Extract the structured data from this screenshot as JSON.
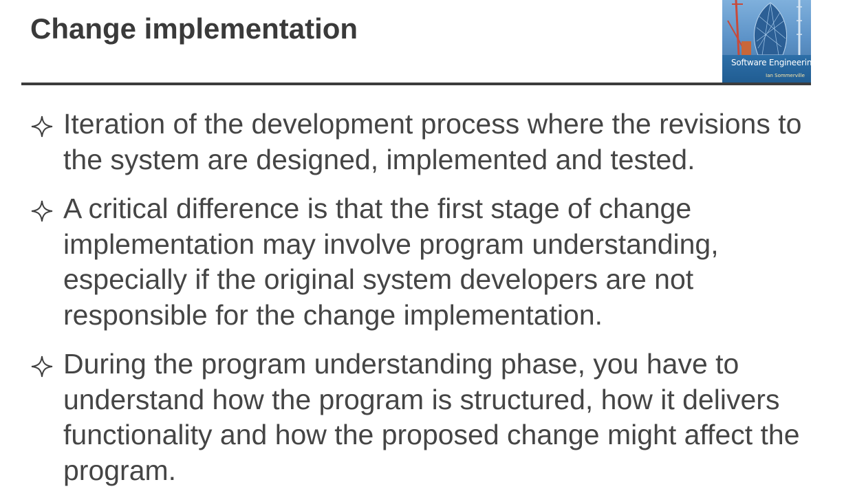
{
  "slide": {
    "title": "Change implementation",
    "cover": {
      "title": "Software Engineering",
      "author": "Ian Sommerville"
    },
    "bullets": [
      {
        "icon": "four-point-star-icon",
        "text": "Iteration of the development process where the revisions to the system are designed, implemented and tested."
      },
      {
        "icon": "four-point-star-icon",
        "text": "A critical difference is that the first stage of change implementation may involve program understanding, especially if the original system developers are not responsible for  the change implementation."
      },
      {
        "icon": "four-point-star-icon",
        "text": "During the program understanding phase, you have to understand how the program is structured, how it delivers functionality and how the proposed change might affect the program."
      }
    ]
  }
}
